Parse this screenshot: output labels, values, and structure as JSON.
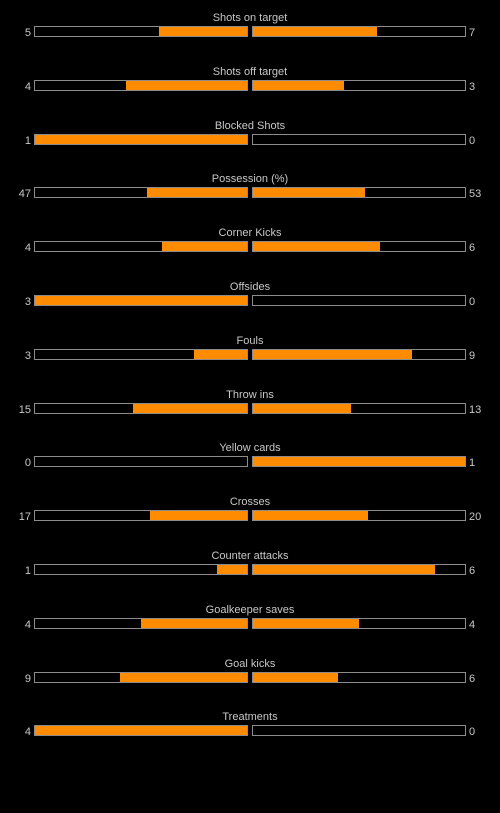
{
  "colors": {
    "background": "#000000",
    "text": "#c8c8c8",
    "bar_border": "#8c8c8c",
    "bar_fill": "#ff8c00"
  },
  "stats": [
    {
      "label": "Shots on target",
      "home": "5",
      "away": "7"
    },
    {
      "label": "Shots off target",
      "home": "4",
      "away": "3"
    },
    {
      "label": "Blocked Shots",
      "home": "1",
      "away": "0"
    },
    {
      "label": "Possession (%)",
      "home": "47",
      "away": "53"
    },
    {
      "label": "Corner Kicks",
      "home": "4",
      "away": "6"
    },
    {
      "label": "Offsides",
      "home": "3",
      "away": "0"
    },
    {
      "label": "Fouls",
      "home": "3",
      "away": "9"
    },
    {
      "label": "Throw ins",
      "home": "15",
      "away": "13"
    },
    {
      "label": "Yellow cards",
      "home": "0",
      "away": "1"
    },
    {
      "label": "Crosses",
      "home": "17",
      "away": "20"
    },
    {
      "label": "Counter attacks",
      "home": "1",
      "away": "6"
    },
    {
      "label": "Goalkeeper saves",
      "home": "4",
      "away": "4"
    },
    {
      "label": "Goal kicks",
      "home": "9",
      "away": "6"
    },
    {
      "label": "Treatments",
      "home": "4",
      "away": "0"
    }
  ]
}
